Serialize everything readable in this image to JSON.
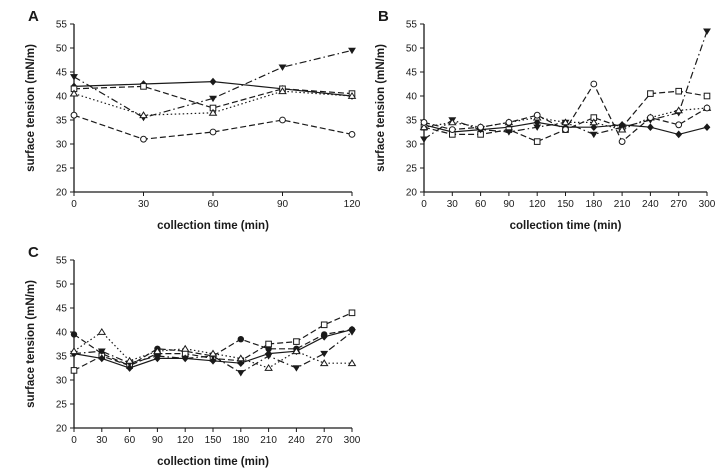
{
  "figure": {
    "background": "#ffffff",
    "ink_color": "#1a1a1a"
  },
  "chart_data": [
    {
      "type": "line",
      "panel_label": "A",
      "title": "",
      "xlabel": "collection time (min)",
      "ylabel": "surface tension (mN/m)",
      "xlim": [
        0,
        120
      ],
      "ylim": [
        20,
        55
      ],
      "xticks": [
        0,
        30,
        60,
        90,
        120
      ],
      "yticks": [
        20,
        25,
        30,
        35,
        40,
        45,
        50,
        55
      ],
      "grid": false,
      "legend": "none",
      "x": [
        0,
        30,
        60,
        90,
        120
      ],
      "series": [
        {
          "name": "filled-diamond",
          "marker": "filled-diamond",
          "line": "solid",
          "values": [
            42,
            42.5,
            43,
            41.5,
            40
          ]
        },
        {
          "name": "open-square",
          "marker": "open-square",
          "line": "dashed",
          "values": [
            41.5,
            42,
            37.5,
            41.5,
            40.5
          ]
        },
        {
          "name": "filled-triangle-down",
          "marker": "filled-triangle-down",
          "line": "dashdot",
          "values": [
            44,
            35.5,
            39.5,
            46,
            49.5
          ]
        },
        {
          "name": "open-triangle-up",
          "marker": "open-triangle-up",
          "line": "dotted",
          "values": [
            40.5,
            36,
            36.5,
            41,
            40
          ]
        },
        {
          "name": "open-circle",
          "marker": "open-circle",
          "line": "dashed",
          "values": [
            36,
            31,
            32.5,
            35,
            32
          ]
        }
      ]
    },
    {
      "type": "line",
      "panel_label": "B",
      "title": "",
      "xlabel": "collection time (min)",
      "ylabel": "surface tension (mN/m)",
      "xlim": [
        0,
        300
      ],
      "ylim": [
        20,
        55
      ],
      "xticks": [
        0,
        30,
        60,
        90,
        120,
        150,
        180,
        210,
        240,
        270,
        300
      ],
      "yticks": [
        20,
        25,
        30,
        35,
        40,
        45,
        50,
        55
      ],
      "grid": false,
      "legend": "none",
      "x": [
        0,
        30,
        60,
        90,
        120,
        150,
        180,
        210,
        240,
        270,
        300
      ],
      "series": [
        {
          "name": "filled-diamond",
          "marker": "filled-diamond",
          "line": "solid",
          "values": [
            34,
            32.5,
            33,
            33.5,
            34.5,
            33.5,
            33.5,
            34,
            33.5,
            32,
            33.5
          ]
        },
        {
          "name": "open-square",
          "marker": "open-square",
          "line": "dashed",
          "values": [
            33.5,
            32,
            32,
            33,
            30.5,
            33,
            35.5,
            33.5,
            40.5,
            41,
            40
          ]
        },
        {
          "name": "filled-triangle-down",
          "marker": "filled-triangle-down",
          "line": "dashdot",
          "values": [
            31,
            35,
            33,
            32.5,
            33.5,
            34.5,
            32,
            33.5,
            35,
            36.5,
            53.5
          ]
        },
        {
          "name": "open-triangle-up",
          "marker": "open-triangle-up",
          "line": "dotted",
          "values": [
            33.5,
            34.5,
            33.5,
            34.5,
            35.5,
            34.5,
            34.5,
            33,
            35.5,
            37,
            37.5
          ]
        },
        {
          "name": "open-circle",
          "marker": "open-circle",
          "line": "dashed",
          "values": [
            34.5,
            33,
            33.5,
            34.5,
            36,
            33,
            42.5,
            30.5,
            35.5,
            34,
            37.5
          ]
        }
      ]
    },
    {
      "type": "line",
      "panel_label": "C",
      "title": "",
      "xlabel": "collection time (min)",
      "ylabel": "surface tension (mN/m)",
      "xlim": [
        0,
        300
      ],
      "ylim": [
        20,
        55
      ],
      "xticks": [
        0,
        30,
        60,
        90,
        120,
        150,
        180,
        210,
        240,
        270,
        300
      ],
      "yticks": [
        20,
        25,
        30,
        35,
        40,
        45,
        50,
        55
      ],
      "grid": false,
      "legend": "none",
      "x": [
        0,
        30,
        60,
        90,
        120,
        150,
        180,
        210,
        240,
        270,
        300
      ],
      "series": [
        {
          "name": "filled-circle",
          "marker": "filled-circle",
          "line": "dashed",
          "values": [
            39.5,
            35.5,
            33,
            36.5,
            36,
            35,
            38.5,
            36.5,
            36.5,
            39.5,
            40.5
          ]
        },
        {
          "name": "open-square",
          "marker": "open-square",
          "line": "dashed",
          "values": [
            32,
            35,
            33,
            35.5,
            35.5,
            34.5,
            34,
            37.5,
            38,
            41.5,
            44
          ]
        },
        {
          "name": "filled-diamond",
          "marker": "filled-diamond",
          "line": "solid",
          "values": [
            35.5,
            34.5,
            32.5,
            34.5,
            34.5,
            34,
            33.5,
            35.5,
            36,
            39,
            40.5
          ]
        },
        {
          "name": "filled-triangle-down",
          "marker": "filled-triangle-down",
          "line": "dashdot",
          "values": [
            35.5,
            36,
            33.5,
            35,
            34.5,
            35,
            31.5,
            35,
            32.5,
            35.5,
            40
          ]
        },
        {
          "name": "open-triangle-up",
          "marker": "open-triangle-up",
          "line": "dotted",
          "values": [
            36,
            40,
            34,
            36,
            36.5,
            35.5,
            34.5,
            32.5,
            36,
            33.5,
            33.5
          ]
        }
      ]
    }
  ]
}
